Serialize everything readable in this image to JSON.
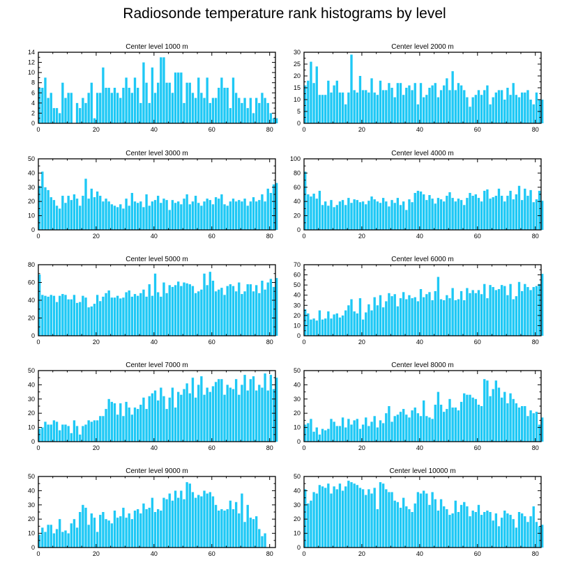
{
  "figure": {
    "title": "Radiosonde temperature rank histograms by level"
  },
  "colors": {
    "bar": "#1EC8F5",
    "axis": "#000000"
  },
  "chart_data": [
    {
      "type": "bar",
      "title": "Center level 1000 m",
      "xlim": [
        0,
        82
      ],
      "ylim": [
        0,
        14
      ],
      "xticks": [
        0,
        20,
        40,
        60,
        80
      ],
      "yticks": [
        0,
        2,
        4,
        6,
        8,
        10,
        12,
        14
      ],
      "values": [
        7,
        7,
        9,
        5,
        6,
        3,
        3,
        2,
        8,
        5,
        6,
        6,
        0,
        4,
        3,
        5,
        4,
        6,
        8,
        1,
        6,
        6,
        11,
        7,
        7,
        6,
        7,
        6,
        5,
        7,
        9,
        7,
        6,
        9,
        7,
        4,
        12,
        8,
        4,
        11,
        6,
        8,
        13,
        13,
        8,
        8,
        6,
        10,
        10,
        10,
        4,
        8,
        8,
        6,
        5,
        9,
        6,
        5,
        9,
        4,
        5,
        5,
        7,
        9,
        7,
        7,
        3,
        9,
        6,
        5,
        4,
        5,
        3,
        5,
        2,
        5,
        4,
        6,
        5,
        4,
        2,
        1,
        1
      ]
    },
    {
      "type": "bar",
      "title": "Center level 2000 m",
      "xlim": [
        0,
        82
      ],
      "ylim": [
        0,
        30
      ],
      "xticks": [
        0,
        20,
        40,
        60,
        80
      ],
      "yticks": [
        0,
        5,
        10,
        15,
        20,
        25,
        30
      ],
      "values": [
        16,
        18,
        26,
        17,
        24,
        12,
        12,
        12,
        18,
        13,
        16,
        18,
        13,
        13,
        8,
        13,
        29,
        14,
        13,
        20,
        14,
        14,
        13,
        19,
        13,
        12,
        18,
        14,
        14,
        17,
        15,
        11,
        17,
        17,
        12,
        15,
        16,
        14,
        17,
        8,
        17,
        11,
        12,
        15,
        16,
        17,
        11,
        14,
        16,
        19,
        14,
        22,
        14,
        17,
        16,
        14,
        11,
        7,
        11,
        12,
        14,
        12,
        14,
        16,
        8,
        11,
        13,
        14,
        14,
        10,
        15,
        12,
        17,
        12,
        11,
        13,
        13,
        14,
        10,
        8,
        13,
        10,
        10
      ]
    },
    {
      "type": "bar",
      "title": "Center level 3000 m",
      "xlim": [
        0,
        82
      ],
      "ylim": [
        0,
        50
      ],
      "xticks": [
        0,
        20,
        40,
        60,
        80
      ],
      "yticks": [
        0,
        10,
        20,
        30,
        40,
        50
      ],
      "values": [
        31,
        41,
        30,
        28,
        23,
        21,
        17,
        15,
        24,
        19,
        24,
        21,
        25,
        22,
        17,
        24,
        36,
        22,
        29,
        23,
        27,
        24,
        20,
        22,
        20,
        18,
        17,
        16,
        18,
        15,
        22,
        17,
        26,
        20,
        19,
        20,
        16,
        25,
        17,
        20,
        21,
        24,
        19,
        22,
        21,
        14,
        21,
        19,
        20,
        18,
        22,
        25,
        18,
        20,
        24,
        19,
        17,
        20,
        22,
        21,
        18,
        23,
        22,
        25,
        18,
        17,
        20,
        22,
        20,
        21,
        20,
        22,
        17,
        20,
        23,
        20,
        21,
        25,
        20,
        29,
        26,
        32,
        33
      ]
    },
    {
      "type": "bar",
      "title": "Center level 4000 m",
      "xlim": [
        0,
        82
      ],
      "ylim": [
        0,
        100
      ],
      "xticks": [
        0,
        20,
        40,
        60,
        80
      ],
      "yticks": [
        0,
        20,
        40,
        60,
        80,
        100
      ],
      "values": [
        82,
        50,
        47,
        51,
        44,
        55,
        35,
        40,
        34,
        42,
        32,
        35,
        40,
        42,
        35,
        45,
        38,
        43,
        42,
        39,
        40,
        36,
        41,
        47,
        43,
        40,
        38,
        45,
        40,
        33,
        42,
        38,
        45,
        35,
        40,
        28,
        43,
        39,
        52,
        55,
        54,
        50,
        42,
        49,
        44,
        37,
        45,
        43,
        40,
        48,
        53,
        45,
        40,
        44,
        42,
        35,
        45,
        52,
        48,
        50,
        45,
        40,
        55,
        57,
        44,
        46,
        48,
        58,
        48,
        40,
        48,
        55,
        43,
        50,
        62,
        42,
        58,
        48,
        56,
        39,
        43,
        55,
        41
      ]
    },
    {
      "type": "bar",
      "title": "Center level 5000 m",
      "xlim": [
        0,
        82
      ],
      "ylim": [
        0,
        80
      ],
      "xticks": [
        0,
        20,
        40,
        60,
        80
      ],
      "yticks": [
        0,
        20,
        40,
        60,
        80
      ],
      "values": [
        69,
        46,
        45,
        44,
        46,
        45,
        38,
        45,
        47,
        46,
        41,
        41,
        46,
        37,
        38,
        45,
        43,
        32,
        33,
        36,
        46,
        39,
        44,
        48,
        51,
        43,
        43,
        45,
        42,
        43,
        49,
        51,
        44,
        47,
        45,
        48,
        52,
        44,
        58,
        45,
        70,
        49,
        44,
        60,
        48,
        57,
        55,
        57,
        61,
        56,
        60,
        59,
        58,
        56,
        48,
        50,
        52,
        70,
        57,
        72,
        62,
        50,
        52,
        54,
        46,
        56,
        58,
        56,
        50,
        60,
        47,
        50,
        58,
        58,
        50,
        57,
        48,
        62,
        52,
        60,
        64,
        55,
        65
      ]
    },
    {
      "type": "bar",
      "title": "Center level 6000 m",
      "xlim": [
        0,
        82
      ],
      "ylim": [
        0,
        70
      ],
      "xticks": [
        0,
        20,
        40,
        60,
        80
      ],
      "yticks": [
        0,
        10,
        20,
        30,
        40,
        50,
        60,
        70
      ],
      "values": [
        26,
        22,
        16,
        17,
        15,
        25,
        16,
        17,
        24,
        17,
        21,
        22,
        18,
        20,
        25,
        30,
        36,
        24,
        22,
        37,
        16,
        23,
        31,
        25,
        38,
        30,
        40,
        28,
        34,
        42,
        39,
        41,
        29,
        37,
        43,
        36,
        40,
        37,
        38,
        34,
        46,
        38,
        41,
        43,
        35,
        44,
        58,
        36,
        35,
        40,
        37,
        47,
        35,
        36,
        44,
        35,
        47,
        42,
        45,
        42,
        45,
        41,
        51,
        37,
        50,
        48,
        45,
        46,
        50,
        49,
        40,
        51,
        36,
        39,
        53,
        44,
        51,
        48,
        45,
        48,
        49,
        51,
        61
      ]
    },
    {
      "type": "bar",
      "title": "Center level 7000 m",
      "xlim": [
        0,
        82
      ],
      "ylim": [
        0,
        50
      ],
      "xticks": [
        0,
        20,
        40,
        60,
        80
      ],
      "yticks": [
        0,
        10,
        20,
        30,
        40,
        50
      ],
      "values": [
        9,
        10,
        14,
        12,
        12,
        15,
        14,
        8,
        12,
        12,
        11,
        6,
        15,
        11,
        5,
        11,
        12,
        15,
        14,
        15,
        15,
        18,
        18,
        23,
        30,
        28,
        27,
        19,
        27,
        18,
        28,
        24,
        19,
        24,
        23,
        26,
        31,
        23,
        32,
        34,
        36,
        29,
        38,
        32,
        23,
        31,
        38,
        24,
        35,
        33,
        37,
        41,
        34,
        45,
        31,
        40,
        46,
        33,
        38,
        35,
        39,
        42,
        44,
        44,
        33,
        40,
        38,
        37,
        44,
        33,
        40,
        47,
        36,
        44,
        46,
        36,
        40,
        38,
        48,
        36,
        47,
        37,
        45
      ]
    },
    {
      "type": "bar",
      "title": "Center level 8000 m",
      "xlim": [
        0,
        82
      ],
      "ylim": [
        0,
        50
      ],
      "xticks": [
        0,
        20,
        40,
        60,
        80
      ],
      "yticks": [
        0,
        10,
        20,
        30,
        40,
        50
      ],
      "values": [
        12,
        13,
        16,
        7,
        10,
        5,
        9,
        8,
        9,
        16,
        14,
        11,
        11,
        17,
        10,
        16,
        12,
        15,
        16,
        9,
        12,
        17,
        11,
        14,
        18,
        10,
        15,
        13,
        20,
        25,
        14,
        18,
        19,
        21,
        23,
        19,
        17,
        22,
        24,
        20,
        18,
        29,
        18,
        17,
        16,
        26,
        35,
        26,
        21,
        23,
        30,
        24,
        24,
        22,
        28,
        34,
        33,
        33,
        31,
        30,
        26,
        25,
        44,
        43,
        32,
        37,
        43,
        38,
        31,
        35,
        27,
        34,
        30,
        27,
        24,
        25,
        25,
        18,
        22,
        20,
        21,
        12,
        17
      ]
    },
    {
      "type": "bar",
      "title": "Center level 9000 m",
      "xlim": [
        0,
        82
      ],
      "ylim": [
        0,
        50
      ],
      "xticks": [
        0,
        20,
        40,
        60,
        80
      ],
      "yticks": [
        0,
        10,
        20,
        30,
        40,
        50
      ],
      "values": [
        9,
        14,
        11,
        16,
        16,
        10,
        13,
        20,
        11,
        12,
        10,
        17,
        20,
        14,
        25,
        30,
        28,
        16,
        24,
        21,
        11,
        23,
        25,
        20,
        19,
        17,
        26,
        21,
        22,
        28,
        21,
        24,
        20,
        26,
        27,
        24,
        31,
        27,
        28,
        35,
        25,
        27,
        26,
        35,
        34,
        38,
        33,
        40,
        35,
        40,
        34,
        46,
        45,
        39,
        35,
        37,
        36,
        40,
        38,
        39,
        36,
        30,
        26,
        27,
        26,
        27,
        33,
        27,
        32,
        24,
        38,
        18,
        30,
        21,
        20,
        22,
        13,
        8,
        10
      ]
    },
    {
      "type": "bar",
      "title": "Center level 10000 m",
      "xlim": [
        0,
        82
      ],
      "ylim": [
        0,
        50
      ],
      "xticks": [
        0,
        20,
        40,
        60,
        80
      ],
      "yticks": [
        0,
        10,
        20,
        30,
        40,
        50
      ],
      "values": [
        41,
        31,
        33,
        39,
        38,
        44,
        43,
        42,
        45,
        38,
        43,
        41,
        45,
        40,
        43,
        47,
        46,
        45,
        44,
        42,
        41,
        37,
        41,
        38,
        42,
        27,
        46,
        45,
        41,
        39,
        39,
        33,
        32,
        28,
        35,
        29,
        27,
        25,
        31,
        39,
        38,
        40,
        38,
        30,
        39,
        34,
        26,
        34,
        29,
        27,
        23,
        24,
        33,
        25,
        30,
        32,
        29,
        22,
        26,
        25,
        30,
        23,
        25,
        26,
        25,
        19,
        24,
        15,
        21,
        26,
        24,
        23,
        20,
        14,
        25,
        24,
        22,
        18,
        22,
        29,
        18,
        15,
        16
      ]
    }
  ]
}
